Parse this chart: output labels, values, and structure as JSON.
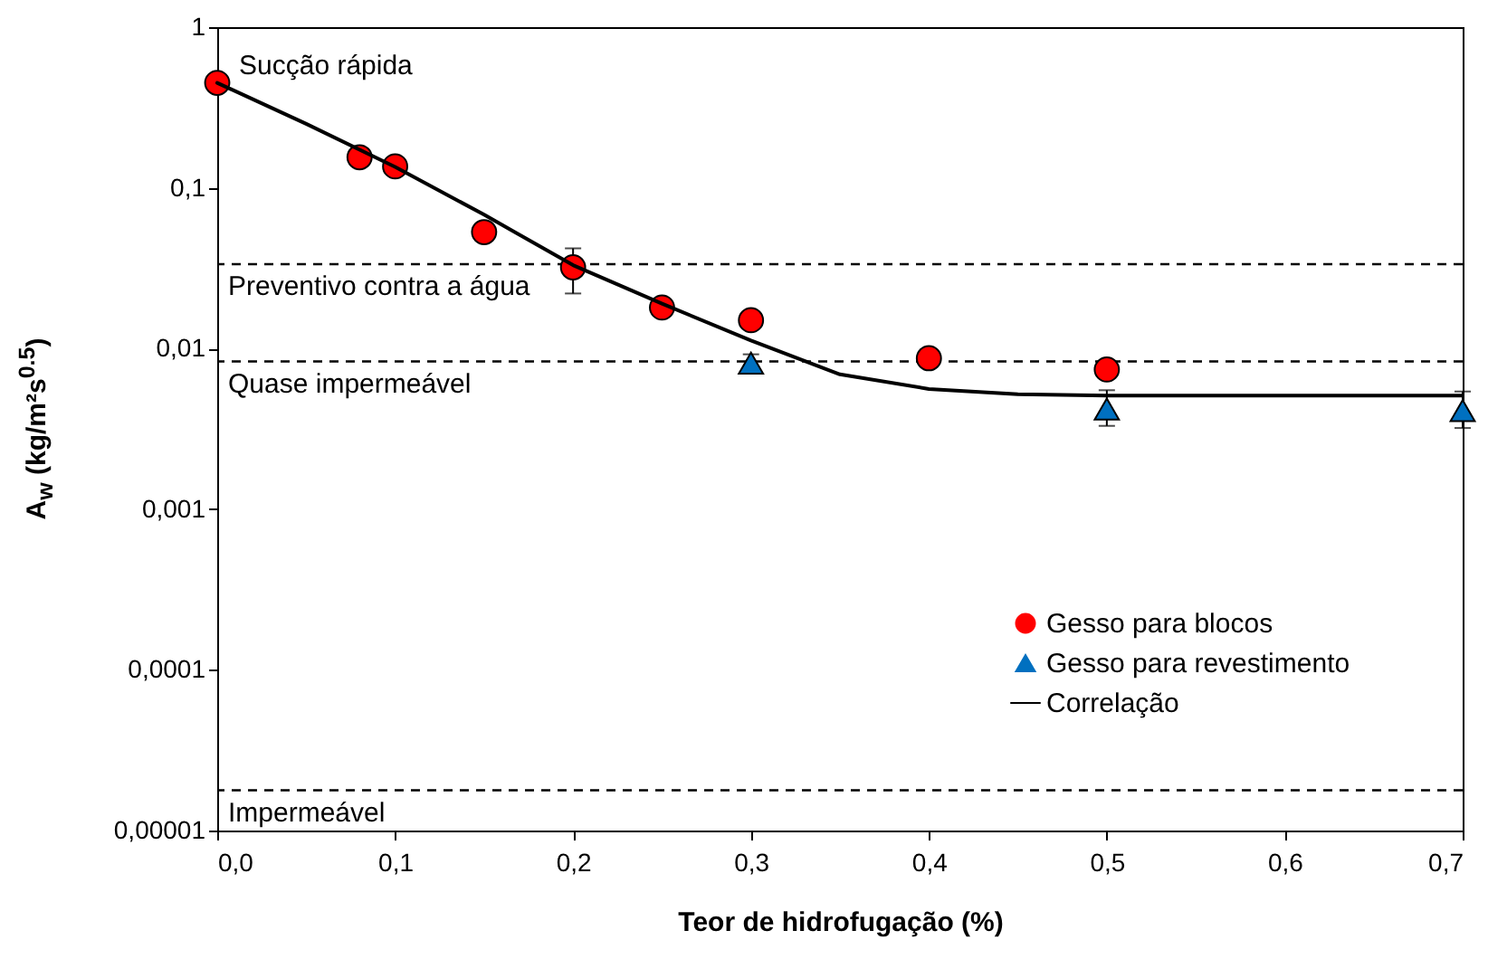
{
  "chart_data": {
    "type": "scatter",
    "xlabel": "Teor de hidrofugação (%)",
    "ylabel": "A$_{w}$ (kg/m²s$^{0.5}$)",
    "log": "y",
    "xlim": [
      0,
      0.7
    ],
    "xticks": [
      {
        "value": 0,
        "label": "0,0"
      },
      {
        "value": 0.1,
        "label": "0,1"
      },
      {
        "value": 0.2,
        "label": "0,2"
      },
      {
        "value": 0.3,
        "label": "0,3"
      },
      {
        "value": 0.4,
        "label": "0,4"
      },
      {
        "value": 0.5,
        "label": "0,5"
      },
      {
        "value": 0.6,
        "label": "0,6"
      },
      {
        "value": 0.7,
        "label": "0,7"
      }
    ],
    "ylim": [
      1e-05,
      1
    ],
    "yticks": [
      {
        "value": 1e-05,
        "label": "0,00001"
      },
      {
        "value": 0.0001,
        "label": "0,0001"
      },
      {
        "value": 0.001,
        "label": "0,001"
      },
      {
        "value": 0.01,
        "label": "0,01"
      },
      {
        "value": 0.1,
        "label": "0,1"
      },
      1
    ],
    "grid": false,
    "legend": "bottom right",
    "series": [
      {
        "name": "Gesso para blocos",
        "marker": "circle",
        "color": "#ff0000",
        "x": [
          0,
          0.08,
          0.1,
          0.15,
          0.2,
          0.25,
          0.3,
          0.4,
          0.5
        ],
        "values": [
          0.45,
          0.155,
          0.136,
          0.053,
          0.032,
          0.018,
          0.015,
          0.0087,
          0.0074
        ],
        "errors": [
          null,
          null,
          null,
          null,
          [
            0.022,
            0.042
          ],
          null,
          null,
          null,
          null
        ]
      },
      {
        "name": "Gesso para revestimento",
        "marker": "triangle",
        "color": "#0070c0",
        "x": [
          0.3,
          0.5,
          0.7
        ],
        "values": [
          0.0081,
          0.0042,
          0.0041
        ],
        "errors": [
          [
            0.0075,
            0.0092
          ],
          [
            0.0033,
            0.0055
          ],
          [
            0.0032,
            0.0054
          ]
        ]
      },
      {
        "name": "Correlação",
        "type": "line",
        "marker": "none",
        "line_style": "solid",
        "color": "#000000",
        "x": [
          0,
          0.05,
          0.1,
          0.15,
          0.2,
          0.25,
          0.3,
          0.35,
          0.4,
          0.45,
          0.5,
          0.6,
          0.7
        ],
        "values": [
          0.45,
          0.25,
          0.135,
          0.068,
          0.033,
          0.019,
          0.0112,
          0.0069,
          0.0056,
          0.0052,
          0.0051,
          0.0051,
          0.0051
        ]
      }
    ],
    "ref_lines": [
      {
        "axis": "y",
        "value": 0.0335,
        "color": "#000000",
        "line_style": "dashed",
        "label": "Preventivo contra a água"
      },
      {
        "axis": "y",
        "value": 0.0083,
        "color": "#000000",
        "line_style": "dashed",
        "label": "Quase impermeável"
      },
      {
        "axis": "y",
        "value": 1.78e-05,
        "color": "#000000",
        "line_style": "dashed",
        "label": "Impermeável"
      }
    ],
    "annotations": [
      "Sucção rápida"
    ]
  }
}
